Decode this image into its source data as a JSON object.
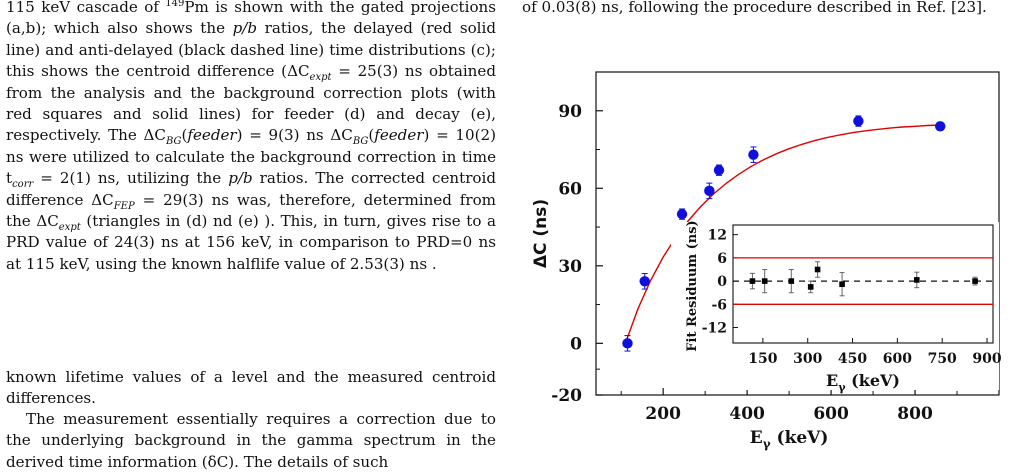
{
  "text": {
    "p1": [
      "115 keV cascade of ",
      "149",
      "Pm is shown with the gated projections (a,b); which also shows the ",
      "p/b",
      " ratios, the delayed (red solid line) and anti-delayed (black dashed line) time distributions (c); this shows the centroid difference (ΔC",
      "expt",
      " = 25(3) ns obtained from the analysis and the background correction plots (with red squares and solid lines) for feeder (d) and decay (e), respectively. The ΔC",
      "BG",
      "(",
      "feeder",
      ") = 9(3) ns ΔC",
      "BG",
      "(",
      "feeder",
      ") = 10(2) ns were utilized to calculate the background correction in time t",
      "corr",
      " = 2(1) ns, utilizing the ",
      "p/b",
      " ratios. The corrected centroid difference ΔC",
      "FEP",
      " = 29(3) ns was, therefore, determined from the ΔC",
      "expt",
      " (triangles in (d) nd (e) ). This, in turn, gives rise to a PRD value of 24(3) ns at 156 keV, in comparison to PRD=0 ns at 115 keV, using the known halflife value of 2.53(3) ns ."
    ],
    "p2": "known lifetime values of a level and the measured centroid differences.",
    "p3": "The measurement essentially requires a correction due to the underlying background in the gamma spectrum in the derived time information (δC). The details of such",
    "right_top": "of 0.03(8) ns, following the procedure described in Ref. [23]."
  },
  "chart_data": [
    {
      "type": "scatter",
      "title": "",
      "xlabel": "E_γ (keV)",
      "ylabel": "ΔC (ns)",
      "xlim": [
        40,
        1000
      ],
      "ylim": [
        -20,
        105
      ],
      "xticks": [
        200,
        400,
        600,
        800
      ],
      "yticks": [
        -20,
        0,
        30,
        60,
        90
      ],
      "series": [
        {
          "name": "",
          "color": "#1010dd",
          "x": [
            115,
            156,
            245,
            310,
            333,
            415,
            665,
            860
          ],
          "y": [
            0,
            24,
            50,
            59,
            67,
            73,
            86,
            84
          ],
          "err": [
            3,
            3,
            2,
            3,
            2,
            3,
            2,
            1.5
          ]
        }
      ],
      "fit": {
        "color": "#e00000",
        "x": [
          110,
          140,
          170,
          200,
          230,
          260,
          290,
          320,
          350,
          380,
          410,
          440,
          470,
          500,
          530,
          560,
          590,
          620,
          650,
          680,
          710,
          740,
          770,
          800,
          830,
          860
        ],
        "y": [
          0,
          13.4,
          24.3,
          33.4,
          41.0,
          47.5,
          53.0,
          57.8,
          61.9,
          65.4,
          68.5,
          71.1,
          73.4,
          75.3,
          77.0,
          78.4,
          79.6,
          80.6,
          81.5,
          82.2,
          82.8,
          83.3,
          83.7,
          84.0,
          84.3,
          84.5
        ]
      }
    },
    {
      "type": "scatter",
      "title": "",
      "xlabel": "E_γ (keV)",
      "ylabel": "Fit Residuum (ns)",
      "xlim": [
        50,
        920
      ],
      "ylim": [
        -16,
        14.5
      ],
      "xticks": [
        150,
        300,
        450,
        600,
        750,
        900
      ],
      "yticks": [
        -12,
        -6,
        0,
        6,
        12
      ],
      "limits": [
        6,
        -6
      ],
      "limit_color": "#e00000",
      "series": [
        {
          "name": "",
          "color": "#000000",
          "x": [
            115,
            156,
            245,
            310,
            333,
            415,
            665,
            860
          ],
          "y": [
            0,
            0,
            0,
            -1.5,
            3,
            -0.8,
            0.3,
            0
          ],
          "err": [
            2,
            3,
            3,
            1.5,
            2,
            3,
            2,
            1
          ]
        }
      ]
    }
  ]
}
